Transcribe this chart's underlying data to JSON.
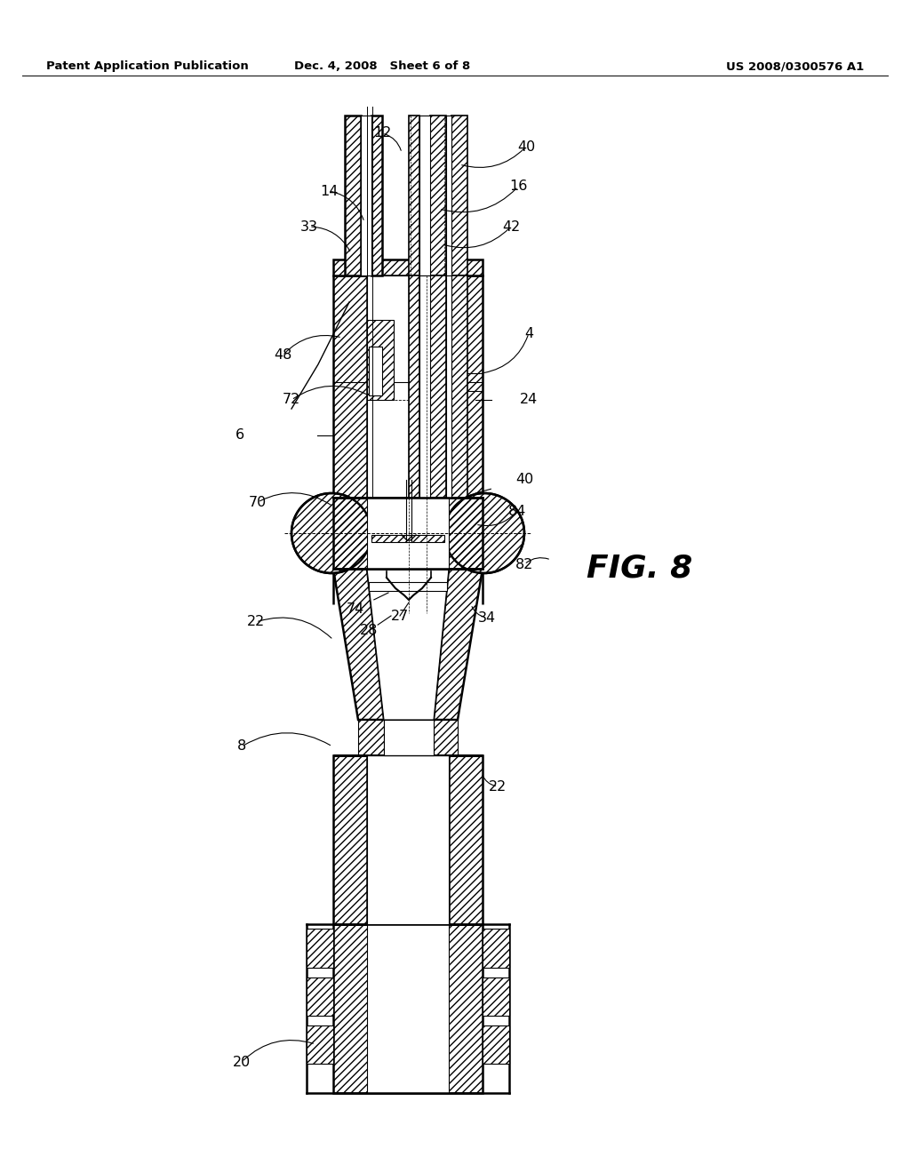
{
  "title_left": "Patent Application Publication",
  "title_mid": "Dec. 4, 2008   Sheet 6 of 8",
  "title_right": "US 2008/0300576 A1",
  "fig_label": "FIG. 8",
  "background_color": "#ffffff"
}
